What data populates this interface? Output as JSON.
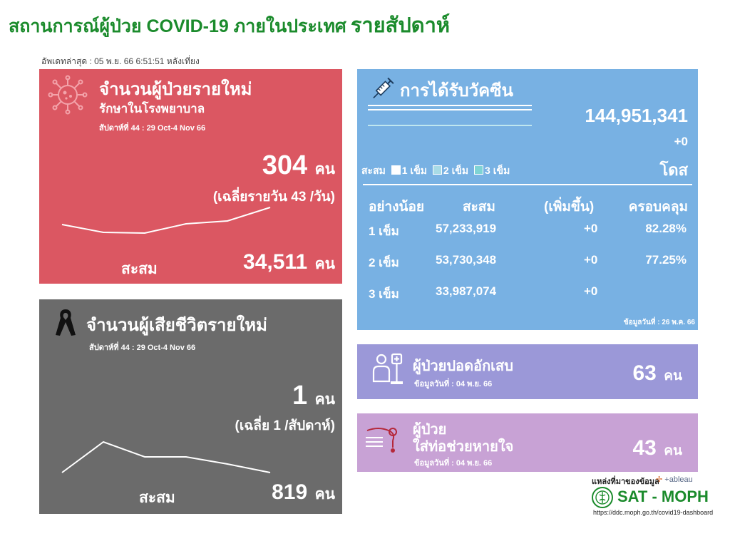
{
  "header": {
    "title_main": "สถานการณ์ผู้ป่วย COVID-19 ภายในประเทศ",
    "title_suffix": "รายสัปดาห์",
    "updated": "อัพเดทล่าสุด : 05 พ.ย. 66 6:51:51 หลังเที่ยง"
  },
  "new_cases": {
    "title": "จำนวนผู้ป่วยรายใหม่",
    "subtitle": "รักษาในโรงพยาบาล",
    "week": "สัปดาห์ที่ 44 : 29 Oct-4 Nov 66",
    "value": "304",
    "unit": "คน",
    "average": "(เฉลี่ยรายวัน 43 /วัน)",
    "cumulative_label": "สะสม",
    "cumulative": "34,511",
    "cumulative_unit": "คน",
    "colors": {
      "panel": "#db5762"
    }
  },
  "deaths": {
    "title": "จำนวนผู้เสียชีวิตรายใหม่",
    "week": "สัปดาห์ที่  44 : 29 Oct-4 Nov 66",
    "value": "1",
    "unit": "คน",
    "average": "(เฉลี่ย 1 /สัปดาห์)",
    "cumulative_label": "สะสม",
    "cumulative": "819",
    "cumulative_unit": "คน",
    "colors": {
      "panel": "#6b6b6b"
    }
  },
  "vaccine": {
    "title": "การได้รับวัคซีน",
    "total": "144,951,341",
    "change": "+0",
    "unit": "โดส",
    "legend_label": "สะสม",
    "legend": [
      "1 เข็ม",
      "2 เข็ม",
      "3 เข็ม"
    ],
    "columns": [
      "อย่างน้อย",
      "สะสม",
      "(เพิ่มขึ้น)",
      "ครอบคลุม"
    ],
    "rows": [
      {
        "dose": "1 เข็ม",
        "cumulative": "57,233,919",
        "increase": "+0",
        "coverage": "82.28%"
      },
      {
        "dose": "2 เข็ม",
        "cumulative": "53,730,348",
        "increase": "+0",
        "coverage": "77.25%"
      },
      {
        "dose": "3 เข็ม",
        "cumulative": "33,987,074",
        "increase": "+0",
        "coverage": ""
      }
    ],
    "data_date": "ข้อมูลวันที่ : 26 พ.ค. 66",
    "colors": {
      "panel": "#78b1e3"
    }
  },
  "pneumonia": {
    "title": "ผู้ป่วยปอดอักเสบ",
    "data_date": "ข้อมูลวันที่ : 04 พ.ย. 66",
    "value": "63",
    "unit": "คน",
    "colors": {
      "panel": "#9b98d8"
    }
  },
  "ventilator": {
    "title_line1": "ผู้ป่วย",
    "title_line2": "ใส่ท่อช่วยหายใจ",
    "data_date": "ข้อมูลวันที่ : 04 พ.ย. 66",
    "value": "43",
    "unit": "คน",
    "colors": {
      "panel": "#c8a2d5"
    }
  },
  "footer": {
    "source_label": "แหล่งที่มาของข้อมูล",
    "tableau": "+ableau",
    "org": "SAT - MOPH",
    "url": "https://ddc.moph.go.th/covid19-dashboard"
  }
}
